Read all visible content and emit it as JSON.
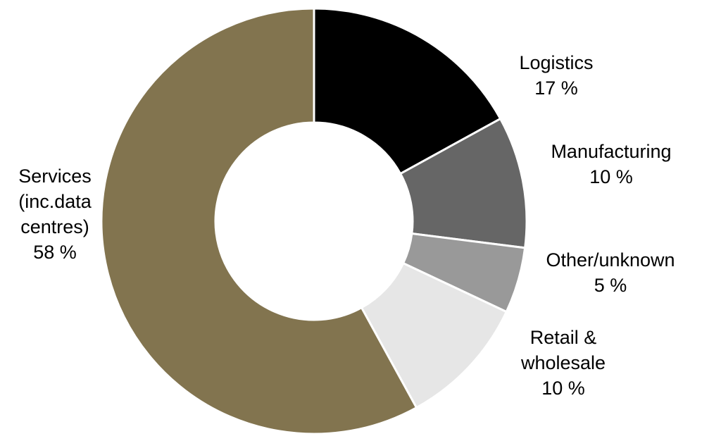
{
  "chart_data": {
    "type": "pie",
    "donut": true,
    "title": "",
    "start_angle_deg": 0,
    "direction": "clockwise",
    "slices": [
      {
        "name": "Logistics",
        "value": 17,
        "value_label": "17 %",
        "color": "#000000",
        "label_lines": [
          "Logistics",
          "17 %"
        ]
      },
      {
        "name": "Manufacturing",
        "value": 10,
        "value_label": "10 %",
        "color": "#666666",
        "label_lines": [
          "Manufacturing",
          "10 %"
        ]
      },
      {
        "name": "Other/unknown",
        "value": 5,
        "value_label": "5 %",
        "color": "#999999",
        "label_lines": [
          "Other/unknown",
          "5 %"
        ]
      },
      {
        "name": "Retail & wholesale",
        "value": 10,
        "value_label": "10 %",
        "color": "#e6e6e6",
        "label_lines": [
          "Retail &",
          "wholesale",
          "10 %"
        ]
      },
      {
        "name": "Services (inc.data centres)",
        "value": 58,
        "value_label": "58 %",
        "color": "#82744f",
        "label_lines": [
          "Services",
          "(inc.data",
          "centres)",
          "58 %"
        ]
      }
    ]
  }
}
